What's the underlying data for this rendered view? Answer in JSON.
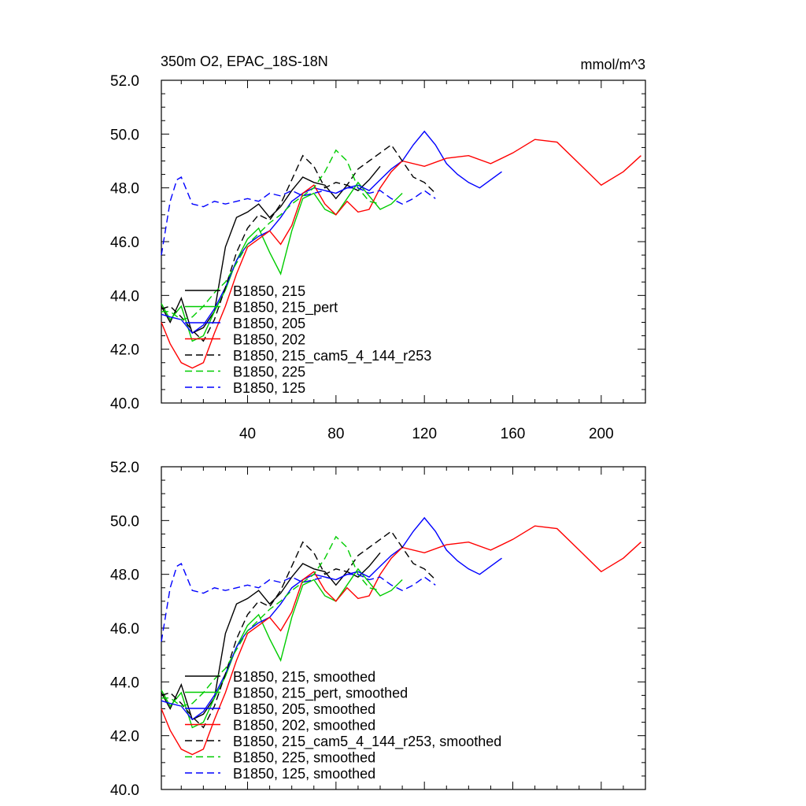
{
  "figure": {
    "title_left": "350m O2, EPAC_18S-18N",
    "title_right": "mmol/m^3"
  },
  "chart_data": [
    {
      "type": "line",
      "title": "350m O2, EPAC_18S-18N",
      "units": "mmol/m^3",
      "xlim": [
        1,
        220
      ],
      "ylim": [
        40,
        52
      ],
      "xticks": [
        40,
        80,
        120,
        160,
        200
      ],
      "xtick_labels": [
        "40",
        "80",
        "120",
        "160",
        "200"
      ],
      "yticks": [
        40,
        42,
        44,
        46,
        48,
        50,
        52
      ],
      "ytick_labels": [
        "40.0",
        "42.0",
        "44.0",
        "46.0",
        "48.0",
        "50.0",
        "52.0"
      ],
      "legend_position": "lower-left",
      "series": [
        {
          "name": "B1850, 215",
          "color": "#000000",
          "dash": "solid",
          "x": [
            1,
            5,
            10,
            15,
            20,
            25,
            30,
            35,
            40,
            45,
            50,
            55,
            60,
            65,
            70,
            75,
            80,
            85,
            90,
            95,
            100
          ],
          "values": [
            43.6,
            43.0,
            43.9,
            42.6,
            42.8,
            43.4,
            45.8,
            46.9,
            47.1,
            47.4,
            46.9,
            47.3,
            47.9,
            48.4,
            48.2,
            48.1,
            47.6,
            48.1,
            47.9,
            48.3,
            48.8
          ]
        },
        {
          "name": "B1850, 215_pert",
          "color": "#00cc00",
          "dash": "solid",
          "x": [
            1,
            5,
            10,
            15,
            20,
            25,
            30,
            35,
            40,
            45,
            50,
            55,
            60,
            65,
            70,
            75,
            80,
            85,
            90,
            95,
            100,
            105,
            110
          ],
          "values": [
            43.7,
            43.1,
            43.6,
            42.3,
            42.5,
            43.4,
            44.2,
            45.3,
            46.1,
            46.5,
            45.6,
            44.8,
            46.4,
            47.6,
            47.8,
            47.2,
            47.0,
            47.6,
            48.2,
            47.7,
            47.2,
            47.4,
            47.8
          ]
        },
        {
          "name": "B1850, 205",
          "color": "#0000ff",
          "dash": "solid",
          "x": [
            1,
            5,
            10,
            15,
            20,
            25,
            30,
            35,
            40,
            45,
            50,
            55,
            60,
            65,
            70,
            75,
            80,
            85,
            90,
            95,
            100,
            105,
            110,
            115,
            120,
            125,
            130,
            135,
            140,
            145,
            150,
            155
          ],
          "values": [
            43.3,
            43.2,
            43.1,
            42.6,
            42.9,
            43.5,
            44.3,
            45.3,
            45.9,
            46.2,
            46.4,
            46.9,
            47.5,
            47.8,
            48.0,
            47.9,
            47.8,
            48.0,
            48.1,
            47.9,
            48.3,
            48.7,
            49.0,
            49.6,
            50.1,
            49.6,
            48.9,
            48.5,
            48.2,
            48.0,
            48.3,
            48.6
          ]
        },
        {
          "name": "B1850, 202",
          "color": "#ff0000",
          "dash": "solid",
          "x": [
            1,
            5,
            10,
            15,
            20,
            25,
            30,
            35,
            40,
            45,
            50,
            55,
            60,
            65,
            70,
            75,
            80,
            85,
            90,
            95,
            100,
            105,
            110,
            120,
            130,
            140,
            150,
            160,
            170,
            180,
            190,
            200,
            210,
            218
          ],
          "values": [
            43.0,
            42.2,
            41.5,
            41.3,
            41.5,
            42.6,
            43.6,
            44.8,
            45.8,
            46.1,
            46.4,
            45.9,
            46.6,
            47.8,
            48.1,
            47.4,
            47.0,
            47.5,
            47.1,
            47.2,
            48.0,
            48.6,
            49.0,
            48.8,
            49.1,
            49.2,
            48.9,
            49.3,
            49.8,
            49.7,
            48.9,
            48.1,
            48.6,
            49.2
          ]
        },
        {
          "name": "B1850, 215_cam5_4_144_r253",
          "color": "#000000",
          "dash": "dashed",
          "x": [
            1,
            5,
            10,
            15,
            20,
            25,
            30,
            35,
            40,
            45,
            50,
            55,
            60,
            65,
            70,
            75,
            80,
            85,
            90,
            95,
            100,
            105,
            110,
            115,
            120,
            125
          ],
          "values": [
            43.5,
            43.6,
            43.2,
            42.7,
            42.3,
            43.1,
            44.3,
            45.6,
            46.5,
            47.0,
            46.8,
            47.4,
            48.3,
            49.2,
            48.8,
            48.0,
            48.2,
            48.1,
            48.7,
            49.0,
            49.3,
            49.6,
            49.0,
            48.4,
            48.2,
            47.8
          ]
        },
        {
          "name": "B1850, 225",
          "color": "#00cc00",
          "dash": "dashed",
          "x": [
            1,
            5,
            10,
            15,
            20,
            25,
            30,
            35,
            40,
            45,
            50,
            55,
            60,
            65,
            70,
            75,
            80,
            85,
            90,
            95,
            100
          ],
          "values": [
            43.4,
            43.4,
            43.1,
            43.2,
            43.6,
            44.1,
            44.5,
            45.2,
            45.9,
            46.3,
            46.7,
            47.0,
            47.4,
            47.7,
            48.0,
            48.6,
            49.4,
            49.0,
            48.0,
            47.5,
            47.4
          ]
        },
        {
          "name": "B1850, 125",
          "color": "#0000ff",
          "dash": "dashed",
          "x": [
            1,
            5,
            8,
            10,
            12,
            15,
            20,
            25,
            30,
            35,
            40,
            45,
            50,
            55,
            60,
            65,
            70,
            75,
            80,
            85,
            90,
            95,
            100,
            105,
            110,
            115,
            120,
            125
          ],
          "values": [
            45.5,
            47.5,
            48.3,
            48.4,
            48.0,
            47.4,
            47.3,
            47.5,
            47.4,
            47.5,
            47.6,
            47.5,
            47.8,
            47.7,
            47.9,
            47.7,
            47.8,
            47.9,
            47.8,
            48.0,
            48.0,
            47.8,
            47.9,
            47.6,
            47.4,
            47.6,
            47.9,
            47.6
          ]
        }
      ]
    },
    {
      "type": "line",
      "title": "",
      "xlim": [
        1,
        220
      ],
      "ylim": [
        40,
        52
      ],
      "yticks": [
        40,
        42,
        44,
        46,
        48,
        50,
        52
      ],
      "ytick_labels": [
        "40.0",
        "42.0",
        "44.0",
        "46.0",
        "48.0",
        "50.0",
        "52.0"
      ],
      "legend_position": "lower-left",
      "series": [
        {
          "name": "B1850, 215, smoothed",
          "color": "#000000",
          "dash": "solid",
          "x": [
            1,
            5,
            10,
            15,
            20,
            25,
            30,
            35,
            40,
            45,
            50,
            55,
            60,
            65,
            70,
            75,
            80,
            85,
            90,
            95,
            100
          ],
          "values": [
            43.6,
            43.0,
            43.9,
            42.6,
            42.8,
            43.4,
            45.8,
            46.9,
            47.1,
            47.4,
            46.9,
            47.3,
            47.9,
            48.4,
            48.2,
            48.1,
            47.6,
            48.1,
            47.9,
            48.3,
            48.8
          ]
        },
        {
          "name": "B1850, 215_pert, smoothed",
          "color": "#00cc00",
          "dash": "solid",
          "x": [
            1,
            5,
            10,
            15,
            20,
            25,
            30,
            35,
            40,
            45,
            50,
            55,
            60,
            65,
            70,
            75,
            80,
            85,
            90,
            95,
            100,
            105,
            110
          ],
          "values": [
            43.7,
            43.1,
            43.6,
            42.3,
            42.5,
            43.4,
            44.2,
            45.3,
            46.1,
            46.5,
            45.6,
            44.8,
            46.4,
            47.6,
            47.8,
            47.2,
            47.0,
            47.6,
            48.2,
            47.7,
            47.2,
            47.4,
            47.8
          ]
        },
        {
          "name": "B1850, 205, smoothed",
          "color": "#0000ff",
          "dash": "solid",
          "x": [
            1,
            5,
            10,
            15,
            20,
            25,
            30,
            35,
            40,
            45,
            50,
            55,
            60,
            65,
            70,
            75,
            80,
            85,
            90,
            95,
            100,
            105,
            110,
            115,
            120,
            125,
            130,
            135,
            140,
            145,
            150,
            155
          ],
          "values": [
            43.3,
            43.2,
            43.1,
            42.6,
            42.9,
            43.5,
            44.3,
            45.3,
            45.9,
            46.2,
            46.4,
            46.9,
            47.5,
            47.8,
            48.0,
            47.9,
            47.8,
            48.0,
            48.1,
            47.9,
            48.3,
            48.7,
            49.0,
            49.6,
            50.1,
            49.6,
            48.9,
            48.5,
            48.2,
            48.0,
            48.3,
            48.6
          ]
        },
        {
          "name": "B1850, 202, smoothed",
          "color": "#ff0000",
          "dash": "solid",
          "x": [
            1,
            5,
            10,
            15,
            20,
            25,
            30,
            35,
            40,
            45,
            50,
            55,
            60,
            65,
            70,
            75,
            80,
            85,
            90,
            95,
            100,
            105,
            110,
            120,
            130,
            140,
            150,
            160,
            170,
            180,
            190,
            200,
            210,
            218
          ],
          "values": [
            43.0,
            42.2,
            41.5,
            41.3,
            41.5,
            42.6,
            43.6,
            44.8,
            45.8,
            46.1,
            46.4,
            45.9,
            46.6,
            47.8,
            48.1,
            47.4,
            47.0,
            47.5,
            47.1,
            47.2,
            48.0,
            48.6,
            49.0,
            48.8,
            49.1,
            49.2,
            48.9,
            49.3,
            49.8,
            49.7,
            48.9,
            48.1,
            48.6,
            49.2
          ]
        },
        {
          "name": "B1850, 215_cam5_4_144_r253, smoothed",
          "color": "#000000",
          "dash": "dashed",
          "x": [
            1,
            5,
            10,
            15,
            20,
            25,
            30,
            35,
            40,
            45,
            50,
            55,
            60,
            65,
            70,
            75,
            80,
            85,
            90,
            95,
            100,
            105,
            110,
            115,
            120,
            125
          ],
          "values": [
            43.5,
            43.6,
            43.2,
            42.7,
            42.3,
            43.1,
            44.3,
            45.6,
            46.5,
            47.0,
            46.8,
            47.4,
            48.3,
            49.2,
            48.8,
            48.0,
            48.2,
            48.1,
            48.7,
            49.0,
            49.3,
            49.6,
            49.0,
            48.4,
            48.2,
            47.8
          ]
        },
        {
          "name": "B1850, 225, smoothed",
          "color": "#00cc00",
          "dash": "dashed",
          "x": [
            1,
            5,
            10,
            15,
            20,
            25,
            30,
            35,
            40,
            45,
            50,
            55,
            60,
            65,
            70,
            75,
            80,
            85,
            90,
            95,
            100
          ],
          "values": [
            43.4,
            43.4,
            43.1,
            43.2,
            43.6,
            44.1,
            44.5,
            45.2,
            45.9,
            46.3,
            46.7,
            47.0,
            47.4,
            47.7,
            48.0,
            48.6,
            49.4,
            49.0,
            48.0,
            47.5,
            47.4
          ]
        },
        {
          "name": "B1850, 125, smoothed",
          "color": "#0000ff",
          "dash": "dashed",
          "x": [
            1,
            5,
            8,
            10,
            12,
            15,
            20,
            25,
            30,
            35,
            40,
            45,
            50,
            55,
            60,
            65,
            70,
            75,
            80,
            85,
            90,
            95,
            100,
            105,
            110,
            115,
            120,
            125
          ],
          "values": [
            45.5,
            47.5,
            48.3,
            48.4,
            48.0,
            47.4,
            47.3,
            47.5,
            47.4,
            47.5,
            47.6,
            47.5,
            47.8,
            47.7,
            47.9,
            47.7,
            47.8,
            47.9,
            47.8,
            48.0,
            48.0,
            47.8,
            47.9,
            47.6,
            47.4,
            47.6,
            47.9,
            47.6
          ]
        }
      ]
    }
  ]
}
